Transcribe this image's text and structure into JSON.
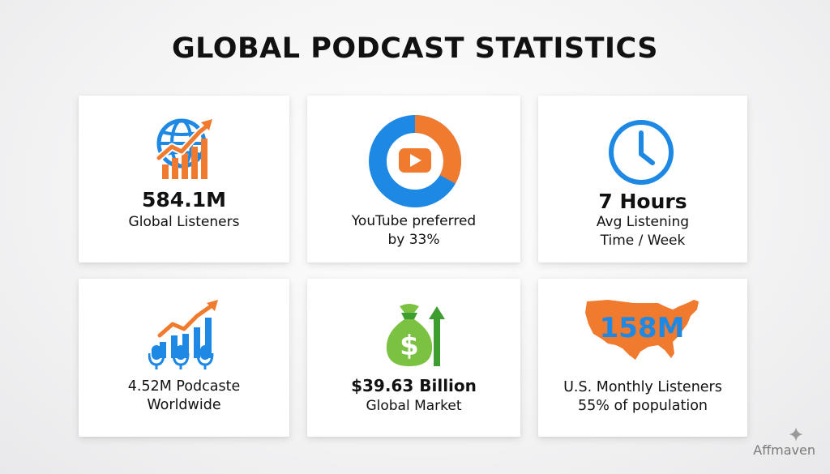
{
  "title": "GLOBAL PODCAST STATISTICS",
  "colors": {
    "blue": "#1e88e5",
    "orange": "#f07a2e",
    "green": "#7cc242",
    "dark_green": "#3f9c2e"
  },
  "cards": [
    {
      "icon": "globe-growth-chart-icon",
      "value": "584.1M",
      "label_lines": [
        "Global Listeners"
      ]
    },
    {
      "icon": "youtube-donut-icon",
      "value": "",
      "label_lines": [
        "YouTube preferred",
        "by 33%"
      ],
      "donut_share_percent": 33
    },
    {
      "icon": "clock-icon",
      "value": "7 Hours",
      "label_lines": [
        "Avg Listening",
        "Time / Week"
      ]
    },
    {
      "icon": "microphone-growth-chart-icon",
      "value": "",
      "label_lines": [
        "4.52M Podcaste",
        "Worldwide"
      ]
    },
    {
      "icon": "money-bag-arrow-icon",
      "value": "$39.63 Billion",
      "label_lines": [
        "Global Market"
      ],
      "icon_text": "$"
    },
    {
      "icon": "usa-map-icon",
      "value": "",
      "label_lines": [
        "U.S. Monthly Listeners",
        "55% of population"
      ],
      "icon_text": "158M"
    }
  ],
  "watermark": "Affmaven"
}
